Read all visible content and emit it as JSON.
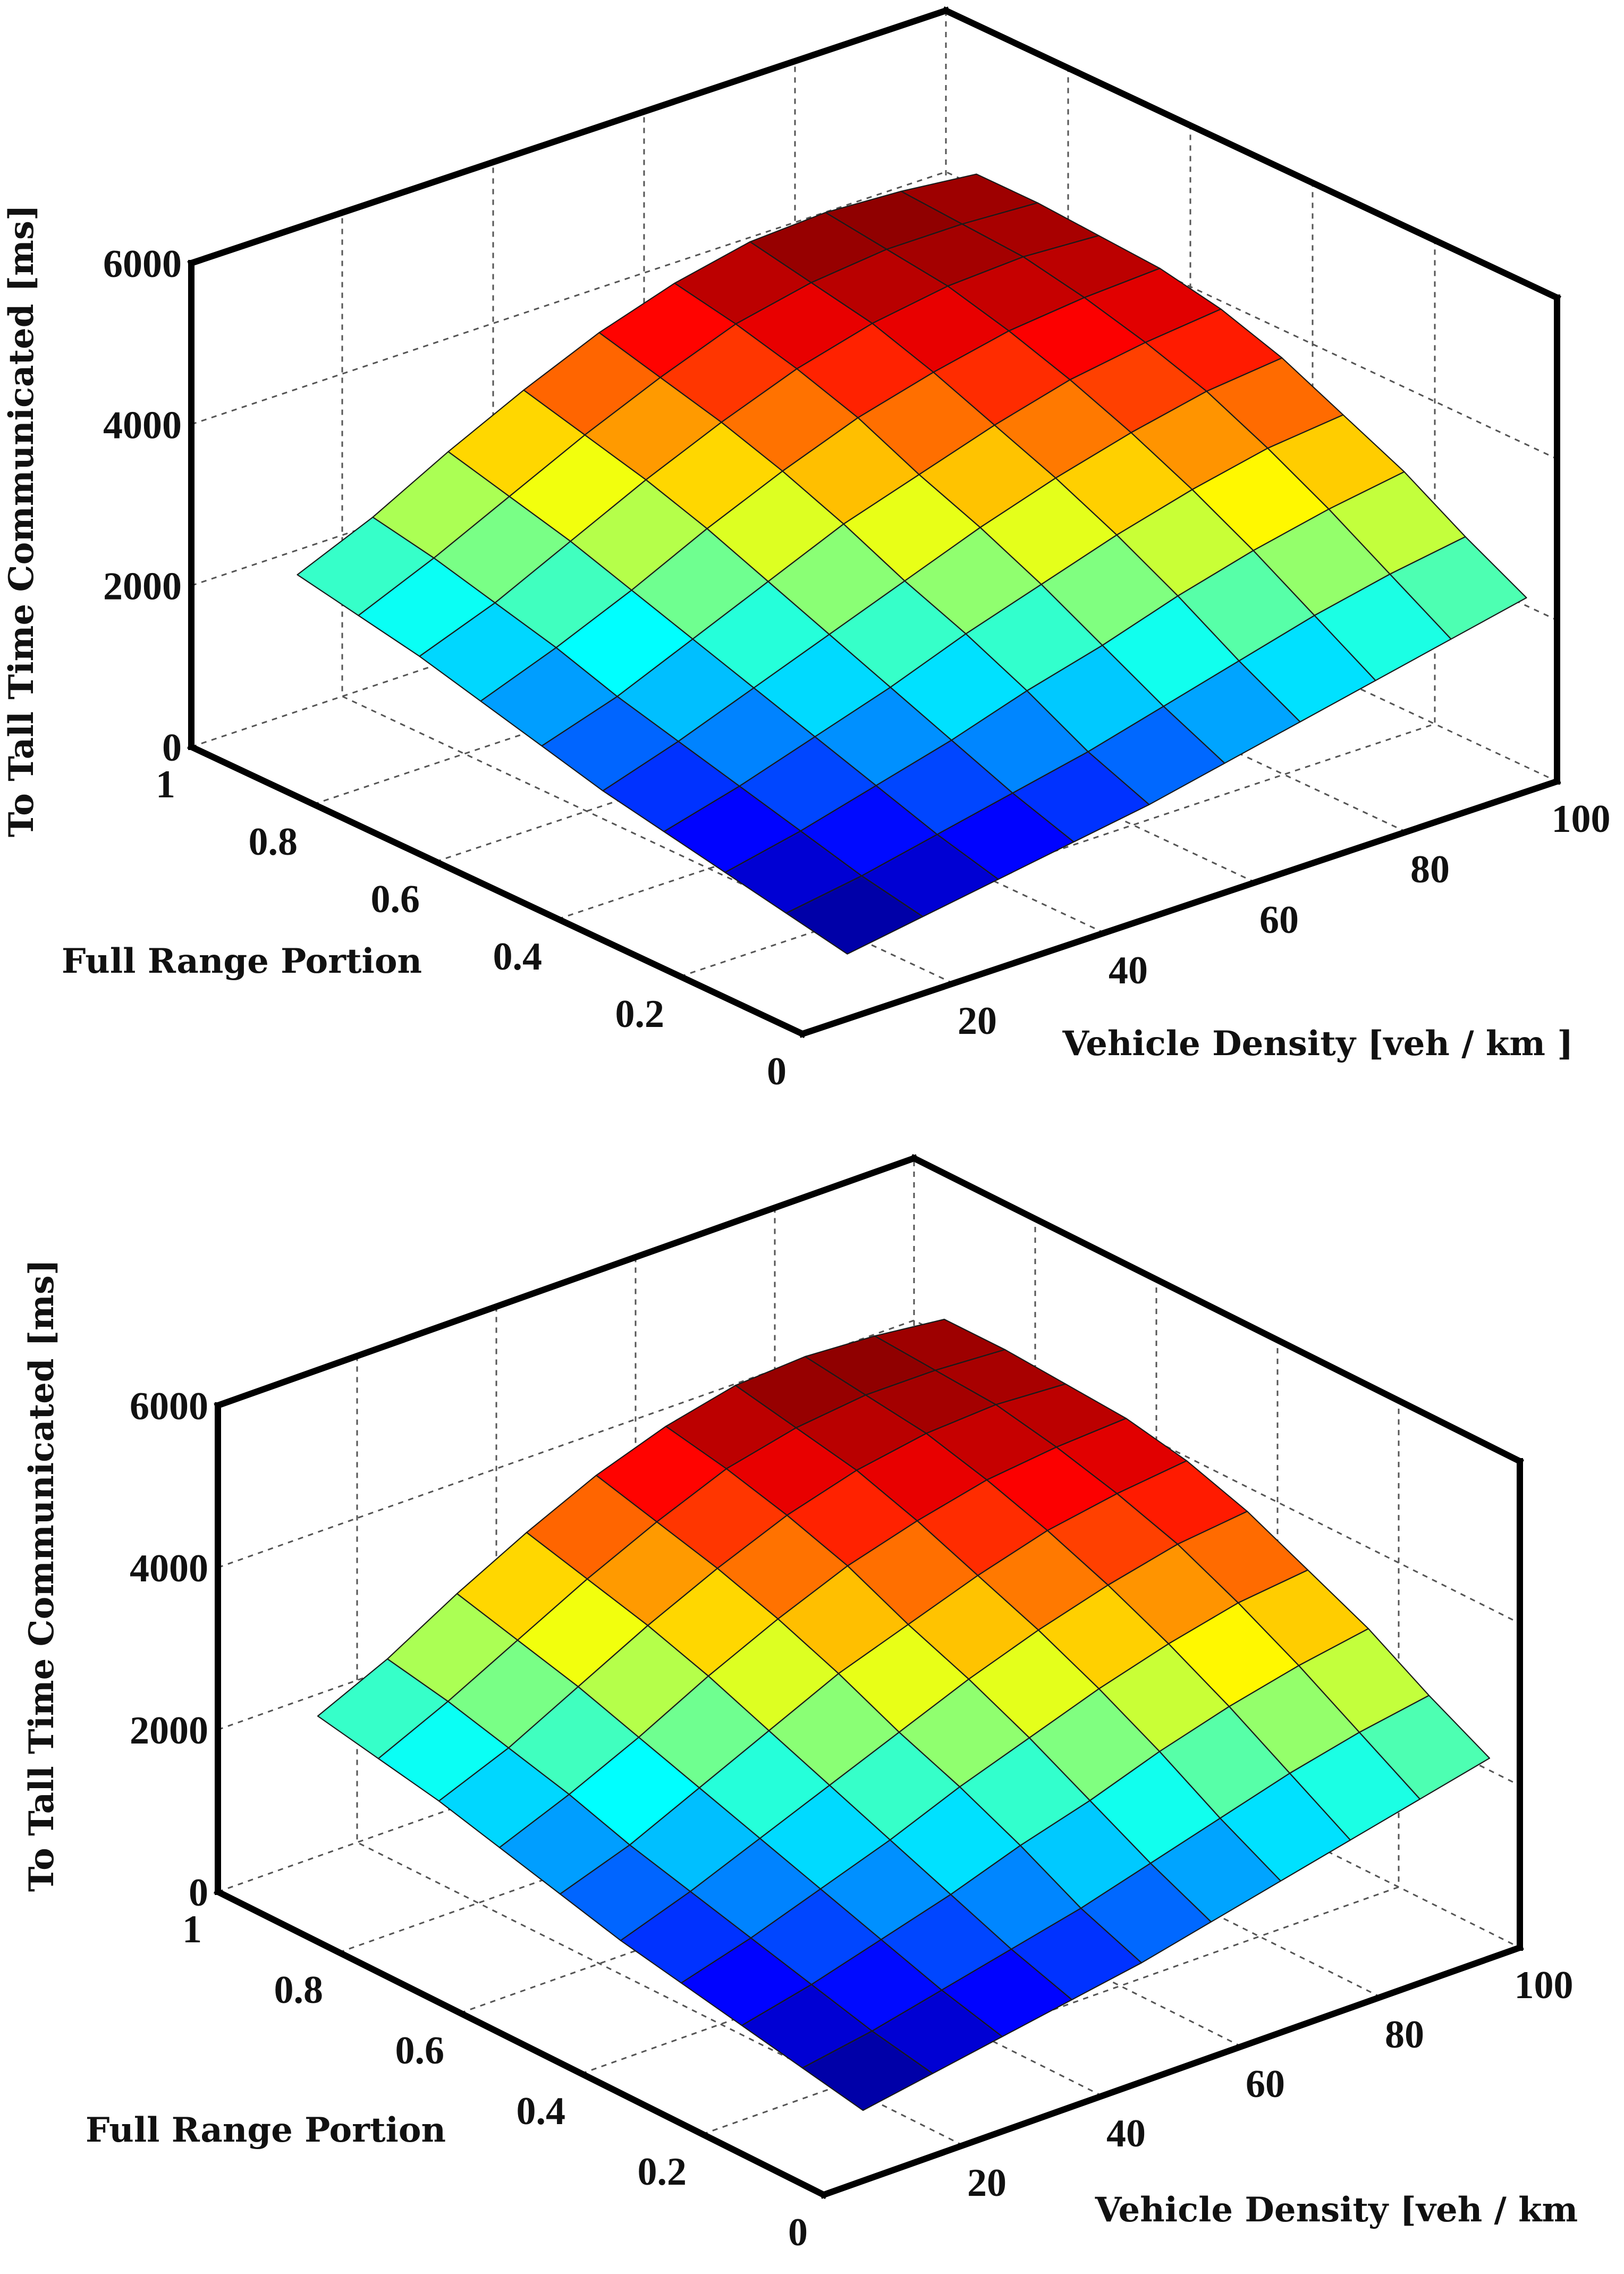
{
  "chart_data": [
    {
      "type": "surface",
      "panel": "top",
      "zlabel": "To Tall Time  Communicated [ms]",
      "ylabel": "Full Range Portion",
      "xlabel": "Vehicle Density [veh / km ]",
      "x_ticks": [
        "20",
        "40",
        "60",
        "80",
        "100"
      ],
      "y_ticks": [
        "0",
        "0.2",
        "0.4",
        "0.6",
        "0.8",
        "1"
      ],
      "z_ticks": [
        "0",
        "2000",
        "4000",
        "6000"
      ],
      "xlim": [
        0,
        100
      ],
      "ylim": [
        0,
        1
      ],
      "zlim": [
        0,
        6000
      ],
      "grid": true,
      "colormap": "jet",
      "surface_x": [
        10,
        20,
        30,
        40,
        50,
        60,
        70,
        80,
        90,
        100
      ],
      "surface_y": [
        0.05,
        0.15,
        0.25,
        0.35,
        0.45,
        0.55,
        0.65,
        0.75,
        0.85,
        0.95
      ],
      "surface_z": [
        [
          500,
          650,
          800,
          950,
          1100,
          1300,
          1500,
          1700,
          1900,
          2100
        ],
        [
          650,
          800,
          1000,
          1200,
          1400,
          1650,
          1900,
          2150,
          2350,
          2500
        ],
        [
          800,
          1000,
          1250,
          1500,
          1800,
          2050,
          2350,
          2600,
          2800,
          2950
        ],
        [
          950,
          1200,
          1500,
          1800,
          2150,
          2450,
          2750,
          3000,
          3200,
          3300
        ],
        [
          1100,
          1400,
          1750,
          2100,
          2450,
          2800,
          3100,
          3350,
          3550,
          3650
        ],
        [
          1300,
          1600,
          2000,
          2400,
          2800,
          3100,
          3400,
          3650,
          3800,
          3900
        ],
        [
          1500,
          1850,
          2250,
          2700,
          3100,
          3450,
          3700,
          3900,
          4000,
          4050
        ],
        [
          1700,
          2050,
          2500,
          2950,
          3350,
          3700,
          3950,
          4100,
          4150,
          4100
        ],
        [
          1850,
          2250,
          2700,
          3150,
          3550,
          3900,
          4100,
          4200,
          4200,
          4150
        ],
        [
          2000,
          2400,
          2900,
          3350,
          3750,
          4050,
          4250,
          4300,
          4250,
          4150
        ]
      ]
    },
    {
      "type": "surface",
      "panel": "bottom",
      "zlabel": "To Tall Time  Communicated [ms]",
      "ylabel": "Full Range Portion",
      "xlabel": "Vehicle Density [veh / km",
      "x_ticks": [
        "20",
        "40",
        "60",
        "80",
        "100"
      ],
      "y_ticks": [
        "0",
        "0.2",
        "0.4",
        "0.6",
        "0.8",
        "1"
      ],
      "z_ticks": [
        "0",
        "2000",
        "4000",
        "6000"
      ],
      "xlim": [
        0,
        100
      ],
      "ylim": [
        0,
        1
      ],
      "zlim": [
        0,
        6000
      ],
      "grid": true,
      "colormap": "jet",
      "surface_x": [
        10,
        20,
        30,
        40,
        50,
        60,
        70,
        80,
        90,
        100
      ],
      "surface_y": [
        0.05,
        0.15,
        0.25,
        0.35,
        0.45,
        0.55,
        0.65,
        0.75,
        0.85,
        0.95
      ],
      "surface_z": [
        [
          550,
          700,
          850,
          1000,
          1150,
          1350,
          1550,
          1750,
          1950,
          2150
        ],
        [
          700,
          850,
          1050,
          1250,
          1450,
          1700,
          1950,
          2200,
          2400,
          2550
        ],
        [
          850,
          1050,
          1300,
          1550,
          1850,
          2100,
          2400,
          2650,
          2850,
          3000
        ],
        [
          1000,
          1250,
          1550,
          1850,
          2200,
          2500,
          2800,
          3050,
          3250,
          3350
        ],
        [
          1150,
          1450,
          1800,
          2150,
          2500,
          2850,
          3150,
          3400,
          3600,
          3700
        ],
        [
          1350,
          1650,
          2050,
          2450,
          2850,
          3150,
          3450,
          3700,
          3850,
          3950
        ],
        [
          1550,
          1900,
          2300,
          2750,
          3150,
          3500,
          3750,
          3950,
          4050,
          4100
        ],
        [
          1750,
          2100,
          2550,
          3000,
          3400,
          3750,
          4000,
          4150,
          4200,
          4150
        ],
        [
          1900,
          2300,
          2750,
          3200,
          3600,
          3950,
          4150,
          4250,
          4250,
          4200
        ],
        [
          2050,
          2450,
          2950,
          3400,
          3800,
          4100,
          4300,
          4350,
          4300,
          4200
        ]
      ]
    }
  ]
}
